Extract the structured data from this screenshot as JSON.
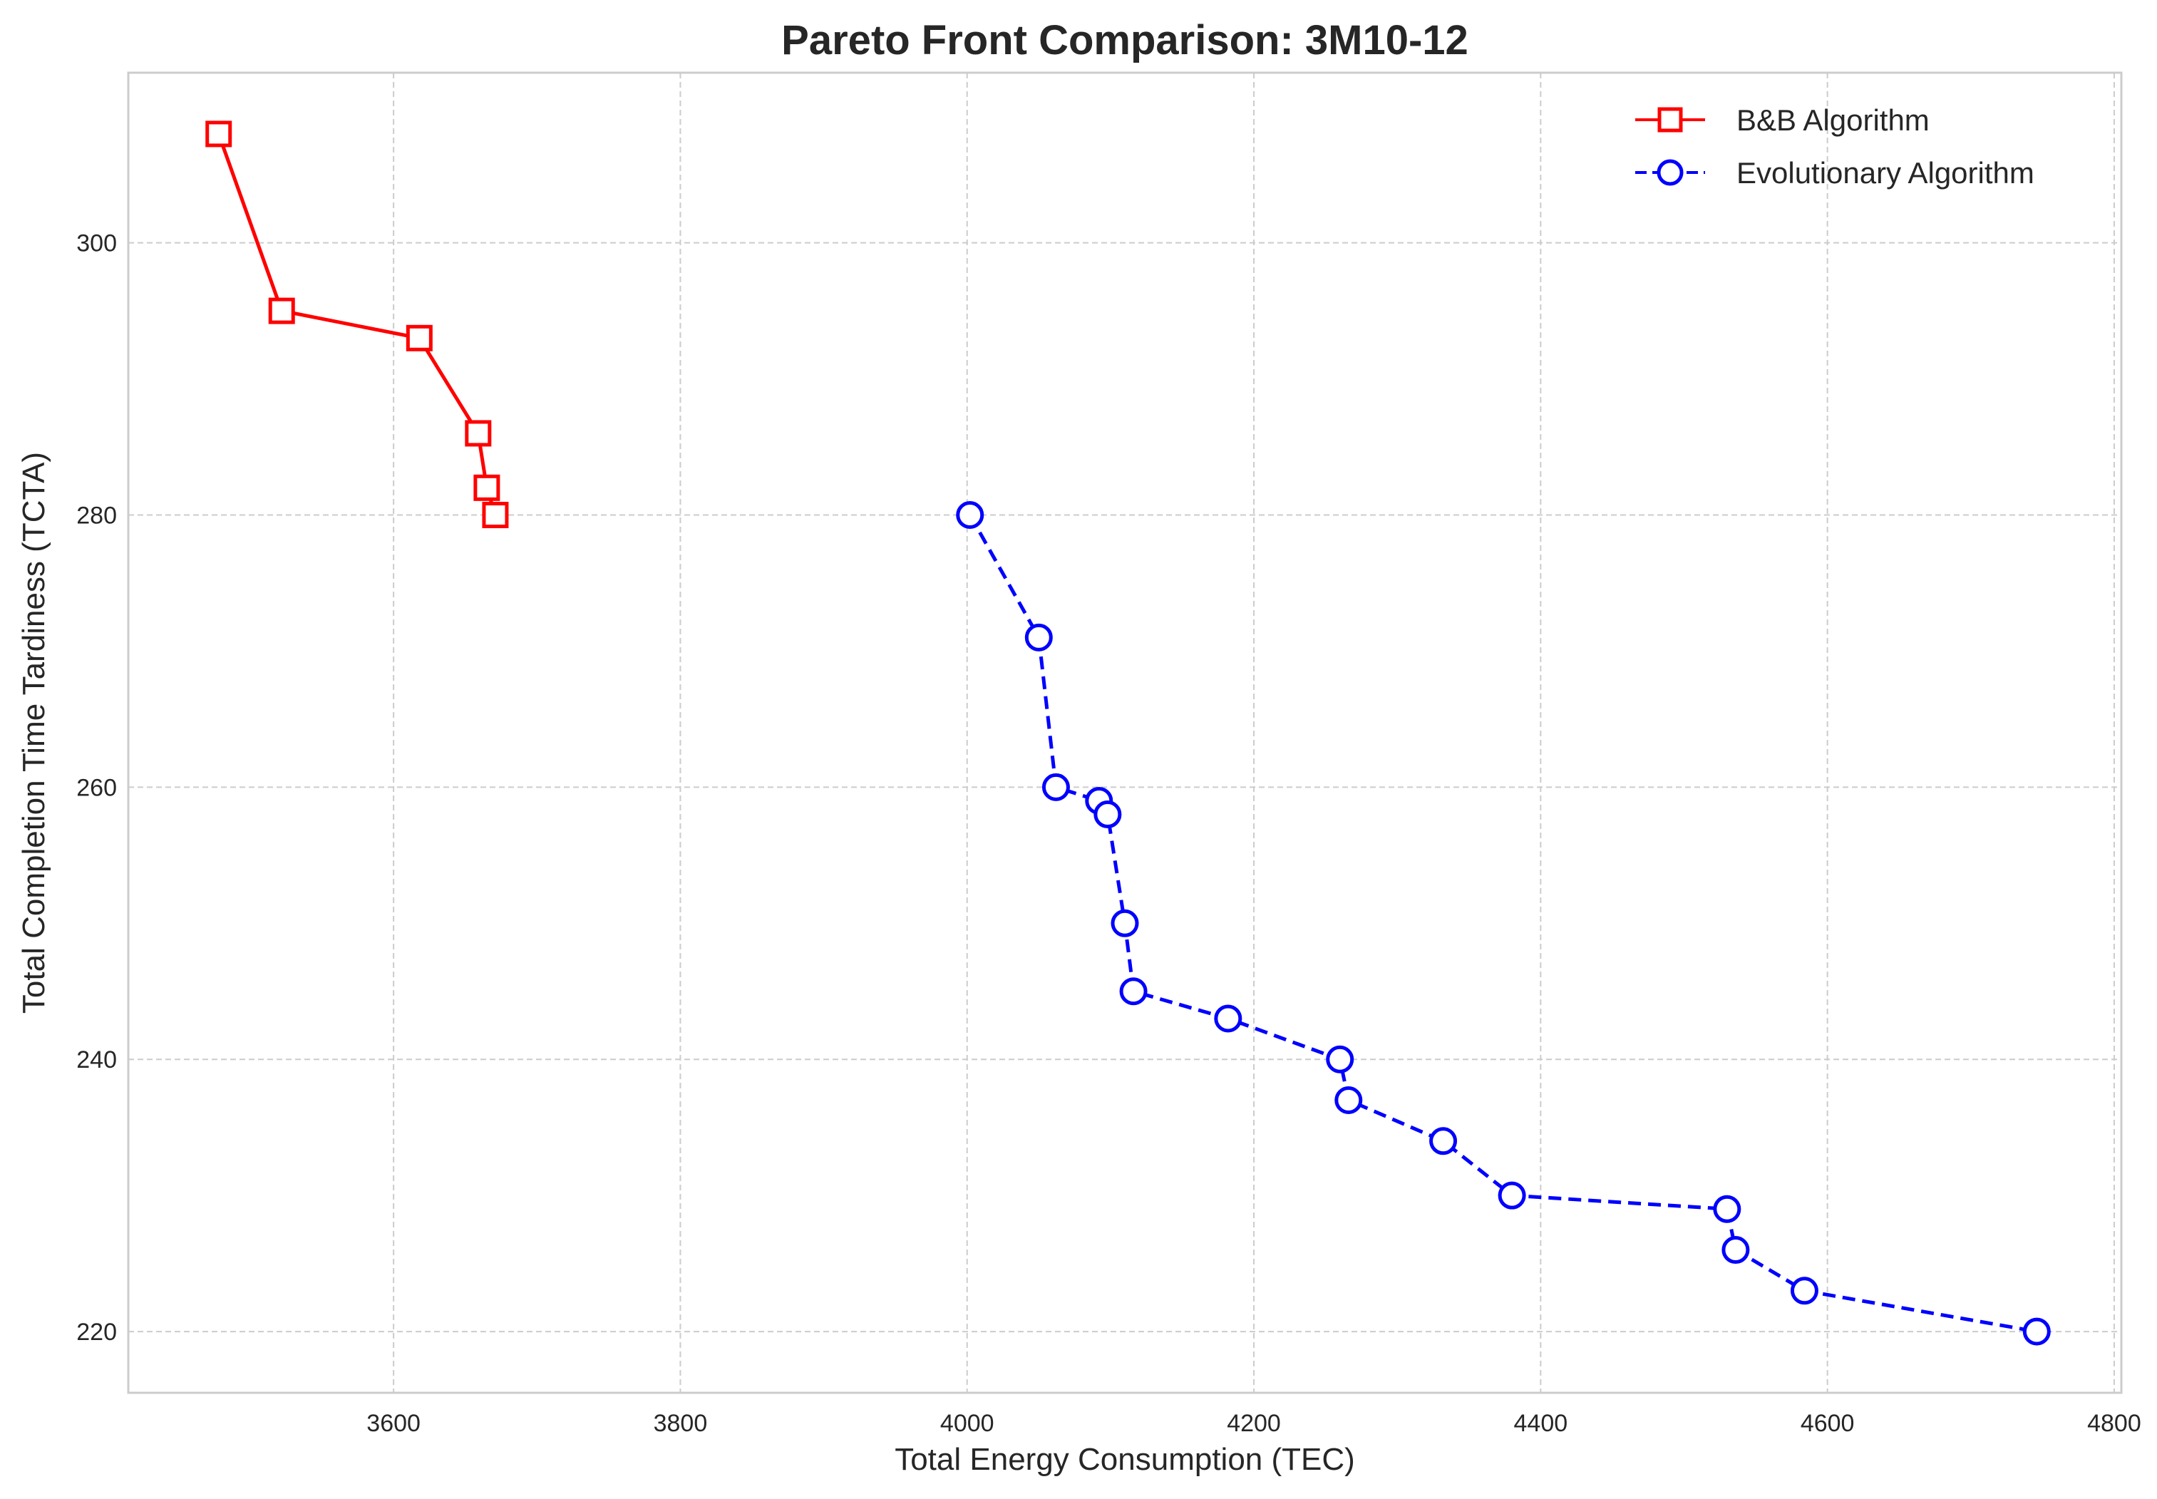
{
  "chart_data": {
    "type": "line",
    "title": "Pareto Front Comparison: 3M10-12",
    "xlabel": "Total Energy Consumption (TEC)",
    "ylabel": "Total Completion Time Tardiness (TCTA)",
    "xlim": [
      3415,
      4805
    ],
    "ylim": [
      215.5,
      312.5
    ],
    "xticks": [
      3600,
      3800,
      4000,
      4200,
      4400,
      4600,
      4800
    ],
    "yticks": [
      220,
      240,
      260,
      280,
      300
    ],
    "grid": true,
    "legend_position": "top-right",
    "series": [
      {
        "name": "B&B Algorithm",
        "color": "#ff0000",
        "line_style": "solid",
        "marker": "square",
        "points": [
          {
            "x": 3478,
            "y": 308
          },
          {
            "x": 3522,
            "y": 295
          },
          {
            "x": 3618,
            "y": 293
          },
          {
            "x": 3659,
            "y": 286
          },
          {
            "x": 3665,
            "y": 282
          },
          {
            "x": 3671,
            "y": 280
          }
        ]
      },
      {
        "name": "Evolutionary Algorithm",
        "color": "#0000ff",
        "line_style": "dashed",
        "marker": "circle",
        "points": [
          {
            "x": 4002,
            "y": 280
          },
          {
            "x": 4050,
            "y": 271
          },
          {
            "x": 4062,
            "y": 260
          },
          {
            "x": 4092,
            "y": 259
          },
          {
            "x": 4098,
            "y": 258
          },
          {
            "x": 4110,
            "y": 250
          },
          {
            "x": 4116,
            "y": 245
          },
          {
            "x": 4182,
            "y": 243
          },
          {
            "x": 4260,
            "y": 240
          },
          {
            "x": 4266,
            "y": 237
          },
          {
            "x": 4332,
            "y": 234
          },
          {
            "x": 4380,
            "y": 230
          },
          {
            "x": 4530,
            "y": 229
          },
          {
            "x": 4536,
            "y": 226
          },
          {
            "x": 4584,
            "y": 223
          },
          {
            "x": 4746,
            "y": 220
          }
        ]
      }
    ]
  }
}
